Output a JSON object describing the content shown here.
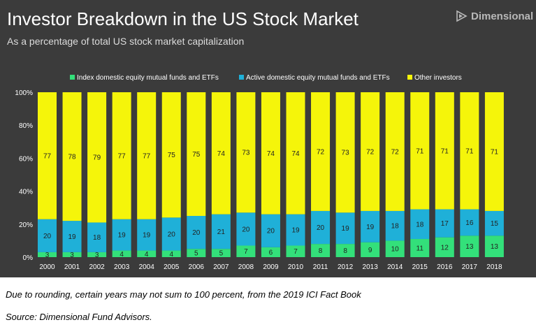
{
  "brand": {
    "name": "Dimensional",
    "icon": "dimensional-logo-icon"
  },
  "footnotes": {
    "rounding_note": "Due to rounding, certain years may not sum to 100 percent, from the 2019 ICI Fact Book",
    "source": "Source: Dimensional Fund Advisors."
  },
  "colors": {
    "background": "#3b3b3b",
    "index": "#33e07a",
    "active": "#1fb0d8",
    "other": "#f5f50a",
    "text": "#ffffff"
  },
  "chart_data": {
    "type": "bar",
    "stacked": true,
    "title": "Investor Breakdown in the US Stock Market",
    "subtitle": "As a percentage of total US stock market capitalization",
    "categories": [
      "2000",
      "2001",
      "2002",
      "2003",
      "2004",
      "2005",
      "2006",
      "2007",
      "2008",
      "2009",
      "2010",
      "2011",
      "2012",
      "2013",
      "2014",
      "2015",
      "2016",
      "2017",
      "2018"
    ],
    "series": [
      {
        "name": "Index domestic equity mutual funds and ETFs",
        "color": "#33e07a",
        "values": [
          3,
          3,
          3,
          4,
          4,
          4,
          5,
          5,
          7,
          6,
          7,
          8,
          8,
          9,
          10,
          11,
          12,
          13,
          13
        ]
      },
      {
        "name": "Active domestic equity mutual funds and ETFs",
        "color": "#1fb0d8",
        "values": [
          20,
          19,
          18,
          19,
          19,
          20,
          20,
          21,
          20,
          20,
          19,
          20,
          19,
          19,
          18,
          18,
          17,
          16,
          15
        ]
      },
      {
        "name": "Other investors",
        "color": "#f5f50a",
        "values": [
          77,
          78,
          79,
          77,
          77,
          75,
          75,
          74,
          73,
          74,
          74,
          72,
          73,
          72,
          72,
          71,
          71,
          71,
          71
        ]
      }
    ],
    "yticks": [
      "0%",
      "20%",
      "40%",
      "60%",
      "80%",
      "100%"
    ],
    "ylim": [
      0,
      100
    ],
    "legend_position": "top",
    "grid": false,
    "data_labels": true
  }
}
